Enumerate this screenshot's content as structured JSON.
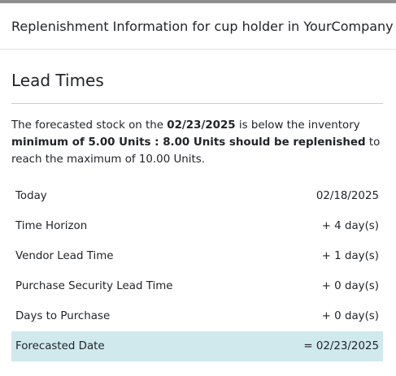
{
  "dialog": {
    "title": "Replenishment Information for cup holder in YourCompany"
  },
  "section": {
    "title": "Lead Times"
  },
  "summary": {
    "part1": "The forecasted stock on the ",
    "date": "02/23/2025",
    "part2": " is below the inventory ",
    "bold_phrase": "minimum of 5.00 Units : 8.00 Units should be replenished",
    "part3": " to reach the maximum of 10.00 Units."
  },
  "lead_times": [
    {
      "label": "Today",
      "value": "02/18/2025"
    },
    {
      "label": "Time Horizon",
      "value": "+ 4 day(s)"
    },
    {
      "label": "Vendor Lead Time",
      "value": "+ 1 day(s)"
    },
    {
      "label": "Purchase Security Lead Time",
      "value": "+ 0 day(s)"
    },
    {
      "label": "Days to Purchase",
      "value": "+ 0 day(s)"
    },
    {
      "label": "Forecasted Date",
      "value": "= 02/23/2025"
    }
  ],
  "colors": {
    "highlight_row": "#d0e9ed",
    "top_bar": "#8f8f8f"
  }
}
